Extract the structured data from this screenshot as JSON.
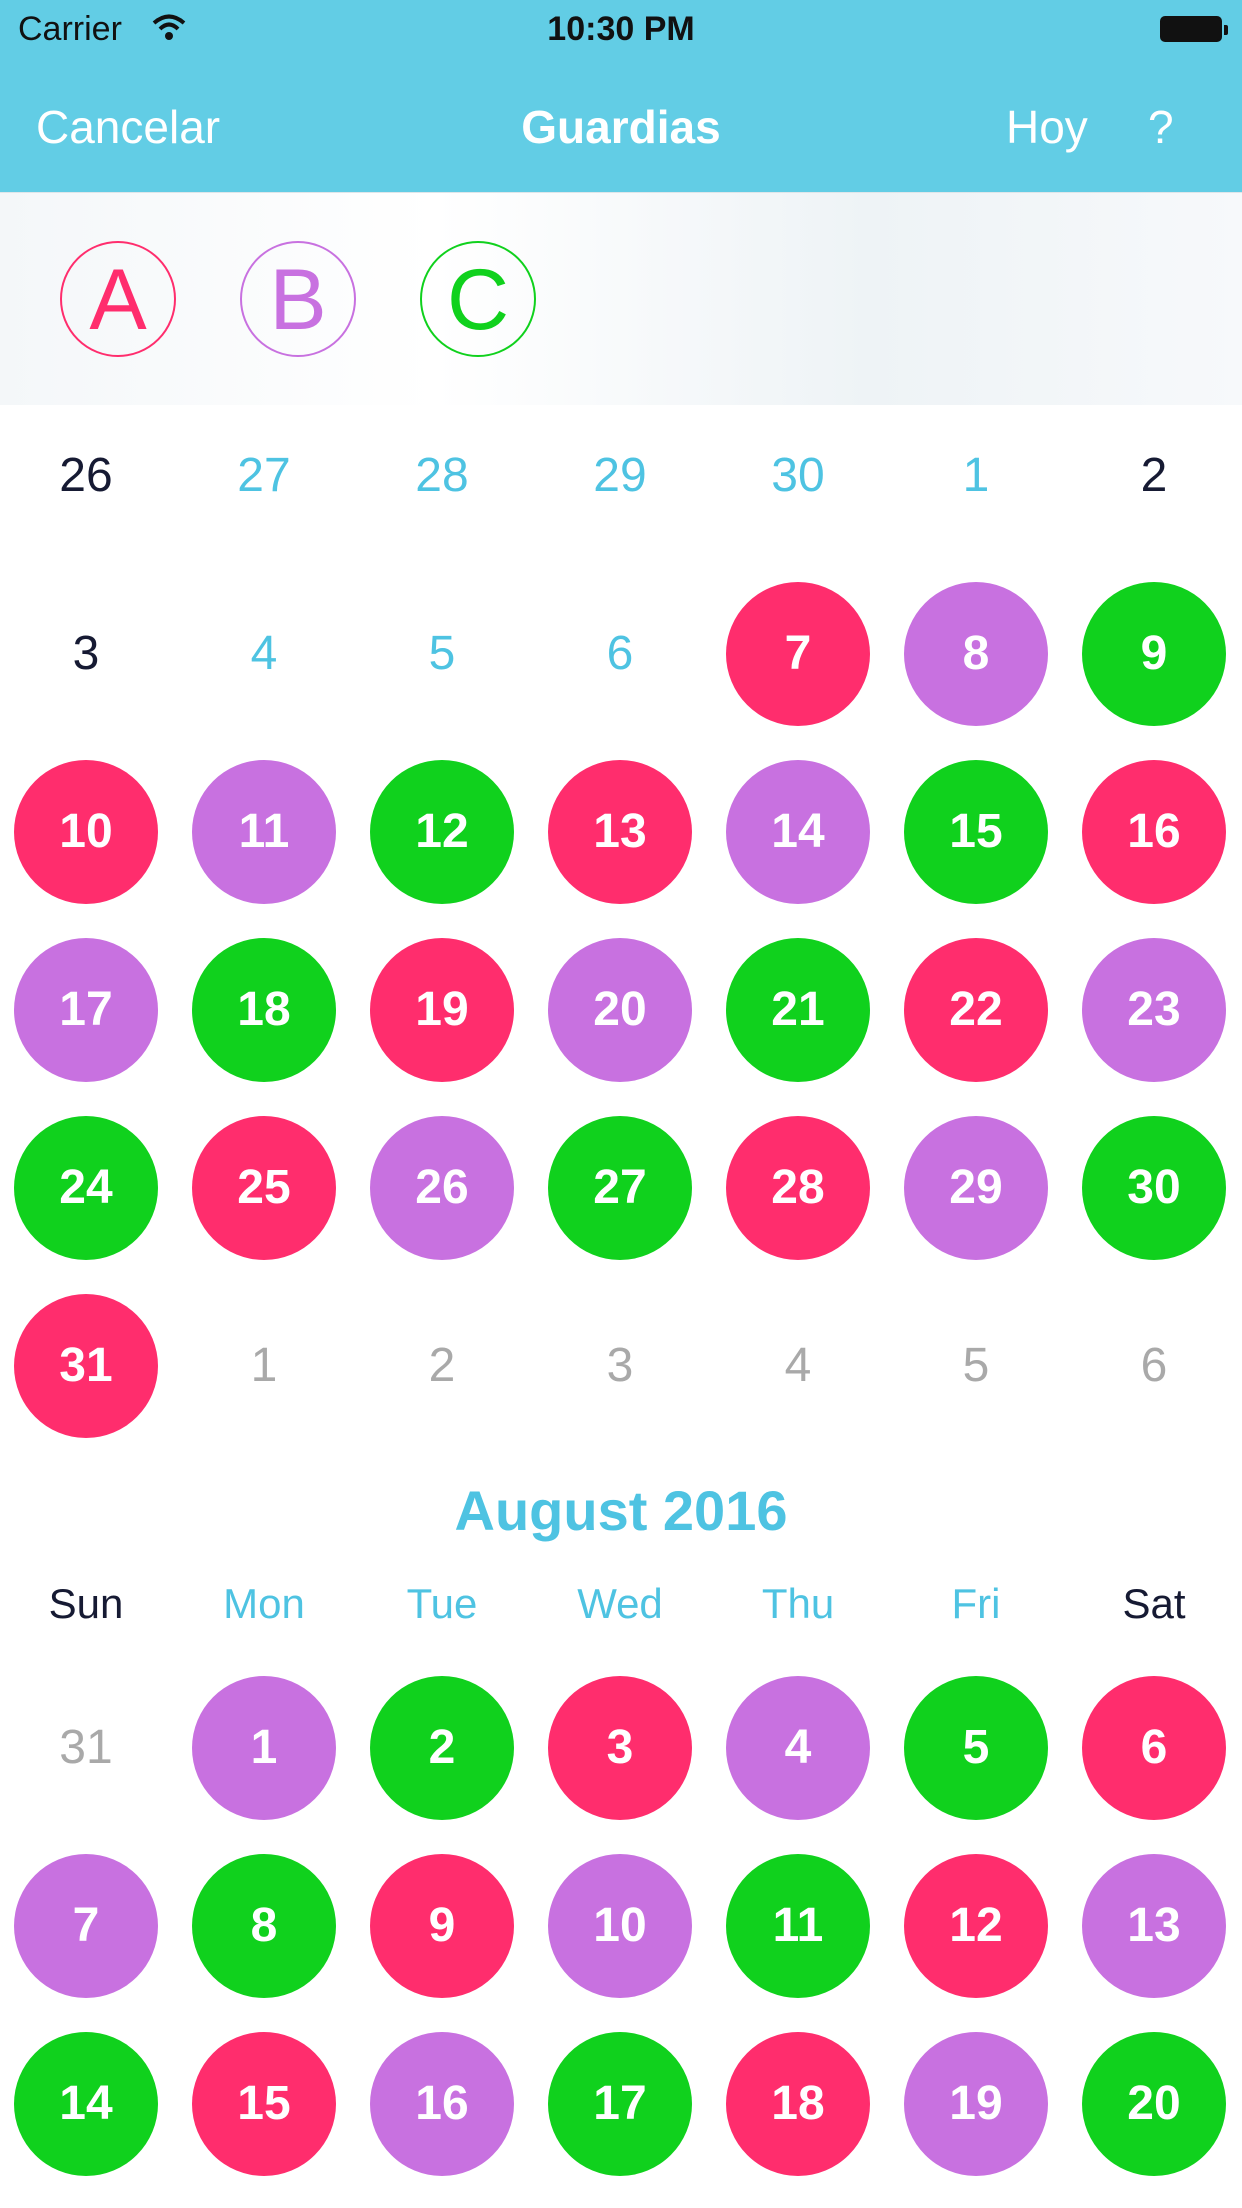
{
  "status_bar": {
    "carrier": "Carrier",
    "time": "10:30 PM"
  },
  "nav": {
    "cancel": "Cancelar",
    "title": "Guardias",
    "today": "Hoy",
    "help": "?"
  },
  "colors": {
    "A": "#ff2d6d",
    "B": "#c871e0",
    "C": "#10d11d",
    "blue": "#4ec3e2",
    "dark": "#161a33",
    "grey": "#a9a9a9"
  },
  "shifts": [
    {
      "label": "A",
      "color": "#ff2d6d"
    },
    {
      "label": "B",
      "color": "#c871e0"
    },
    {
      "label": "C",
      "color": "#10d11d"
    }
  ],
  "july": {
    "weeks": [
      [
        {
          "d": "26",
          "t": "dark"
        },
        {
          "d": "27",
          "t": "blue"
        },
        {
          "d": "28",
          "t": "blue"
        },
        {
          "d": "29",
          "t": "blue"
        },
        {
          "d": "30",
          "t": "blue"
        },
        {
          "d": "1",
          "t": "blue"
        },
        {
          "d": "2",
          "t": "dark"
        }
      ],
      [
        {
          "d": "3",
          "t": "dark"
        },
        {
          "d": "4",
          "t": "blue"
        },
        {
          "d": "5",
          "t": "blue"
        },
        {
          "d": "6",
          "t": "blue"
        },
        {
          "d": "7",
          "t": "A"
        },
        {
          "d": "8",
          "t": "B"
        },
        {
          "d": "9",
          "t": "C"
        }
      ],
      [
        {
          "d": "10",
          "t": "A"
        },
        {
          "d": "11",
          "t": "B"
        },
        {
          "d": "12",
          "t": "C"
        },
        {
          "d": "13",
          "t": "A"
        },
        {
          "d": "14",
          "t": "B"
        },
        {
          "d": "15",
          "t": "C"
        },
        {
          "d": "16",
          "t": "A"
        }
      ],
      [
        {
          "d": "17",
          "t": "B"
        },
        {
          "d": "18",
          "t": "C"
        },
        {
          "d": "19",
          "t": "A"
        },
        {
          "d": "20",
          "t": "B"
        },
        {
          "d": "21",
          "t": "C"
        },
        {
          "d": "22",
          "t": "A"
        },
        {
          "d": "23",
          "t": "B"
        }
      ],
      [
        {
          "d": "24",
          "t": "C"
        },
        {
          "d": "25",
          "t": "A"
        },
        {
          "d": "26",
          "t": "B"
        },
        {
          "d": "27",
          "t": "C"
        },
        {
          "d": "28",
          "t": "A"
        },
        {
          "d": "29",
          "t": "B"
        },
        {
          "d": "30",
          "t": "C"
        }
      ],
      [
        {
          "d": "31",
          "t": "A"
        },
        {
          "d": "1",
          "t": "grey"
        },
        {
          "d": "2",
          "t": "grey"
        },
        {
          "d": "3",
          "t": "grey"
        },
        {
          "d": "4",
          "t": "grey"
        },
        {
          "d": "5",
          "t": "grey"
        },
        {
          "d": "6",
          "t": "grey"
        }
      ]
    ]
  },
  "august": {
    "title": "August 2016",
    "weekdays": [
      {
        "label": "Sun",
        "t": "dark"
      },
      {
        "label": "Mon",
        "t": "blue"
      },
      {
        "label": "Tue",
        "t": "blue"
      },
      {
        "label": "Wed",
        "t": "blue"
      },
      {
        "label": "Thu",
        "t": "blue"
      },
      {
        "label": "Fri",
        "t": "blue"
      },
      {
        "label": "Sat",
        "t": "dark"
      }
    ],
    "weeks": [
      [
        {
          "d": "31",
          "t": "grey"
        },
        {
          "d": "1",
          "t": "B"
        },
        {
          "d": "2",
          "t": "C"
        },
        {
          "d": "3",
          "t": "A"
        },
        {
          "d": "4",
          "t": "B"
        },
        {
          "d": "5",
          "t": "C"
        },
        {
          "d": "6",
          "t": "A"
        }
      ],
      [
        {
          "d": "7",
          "t": "B"
        },
        {
          "d": "8",
          "t": "C"
        },
        {
          "d": "9",
          "t": "A"
        },
        {
          "d": "10",
          "t": "B"
        },
        {
          "d": "11",
          "t": "C"
        },
        {
          "d": "12",
          "t": "A"
        },
        {
          "d": "13",
          "t": "B"
        }
      ],
      [
        {
          "d": "14",
          "t": "C"
        },
        {
          "d": "15",
          "t": "A"
        },
        {
          "d": "16",
          "t": "B"
        },
        {
          "d": "17",
          "t": "C"
        },
        {
          "d": "18",
          "t": "A"
        },
        {
          "d": "19",
          "t": "B"
        },
        {
          "d": "20",
          "t": "C"
        }
      ]
    ]
  }
}
